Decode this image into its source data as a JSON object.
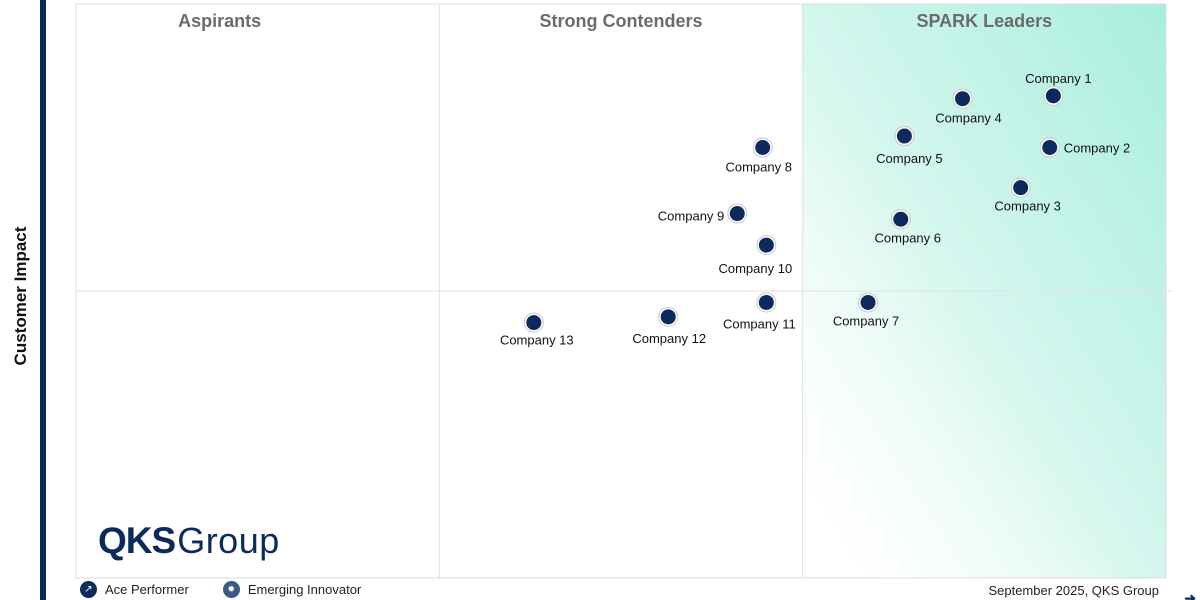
{
  "chart_data": {
    "type": "scatter",
    "title": "",
    "ylabel": "Customer Impact",
    "xlabel": "",
    "xlim": [
      0,
      3
    ],
    "ylim": [
      0,
      2
    ],
    "quadrants": [
      "Aspirants",
      "Strong Contenders",
      "SPARK Leaders"
    ],
    "points": [
      {
        "name": "Company 1",
        "x": 2.69,
        "y": 1.68
      },
      {
        "name": "Company 2",
        "x": 2.68,
        "y": 1.5
      },
      {
        "name": "Company 3",
        "x": 2.6,
        "y": 1.36
      },
      {
        "name": "Company 4",
        "x": 2.44,
        "y": 1.67
      },
      {
        "name": "Company 5",
        "x": 2.28,
        "y": 1.54
      },
      {
        "name": "Company 6",
        "x": 2.27,
        "y": 1.25
      },
      {
        "name": "Company 7",
        "x": 2.18,
        "y": 0.96
      },
      {
        "name": "Company 8",
        "x": 1.89,
        "y": 1.5
      },
      {
        "name": "Company 9",
        "x": 1.82,
        "y": 1.27
      },
      {
        "name": "Company 10",
        "x": 1.9,
        "y": 1.16
      },
      {
        "name": "Company 11",
        "x": 1.9,
        "y": 0.96
      },
      {
        "name": "Company 12",
        "x": 1.63,
        "y": 0.91
      },
      {
        "name": "Company 13",
        "x": 1.26,
        "y": 0.89
      }
    ]
  },
  "legend": {
    "ace_performer": "Ace Performer",
    "emerging_innovator": "Emerging Innovator"
  },
  "branding": {
    "logo_mark": "QKS",
    "logo_word": "Group"
  },
  "footnote": "September 2025, QKS Group",
  "colors": {
    "point_fill": "#0d2a5c",
    "leader_gradient": "#a8eedc",
    "axis_bar": "#0d2a5c"
  }
}
